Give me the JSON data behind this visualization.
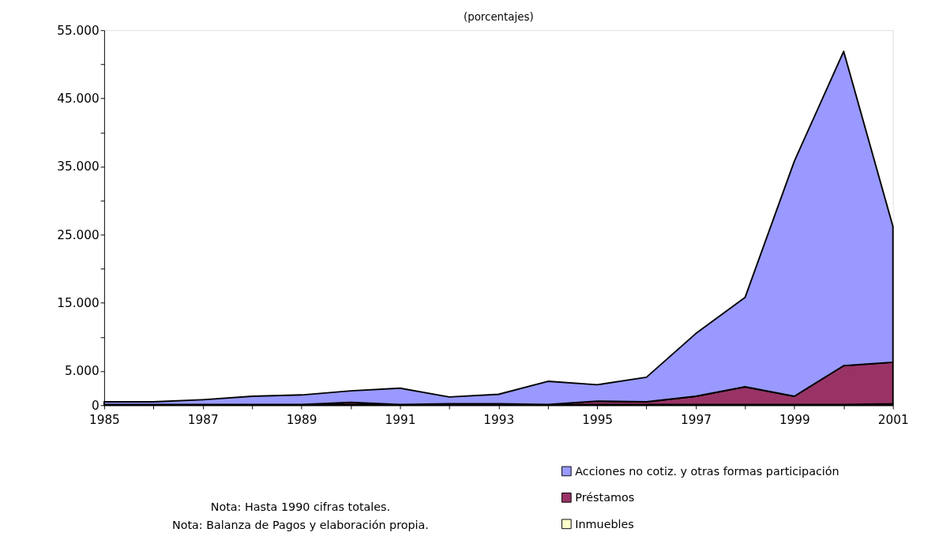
{
  "chart_data": {
    "type": "area",
    "title": "(porcentajes)",
    "stacked": true,
    "x": [
      1985,
      1986,
      1987,
      1988,
      1989,
      1990,
      1991,
      1992,
      1993,
      1994,
      1995,
      1996,
      1997,
      1998,
      1999,
      2000,
      2001
    ],
    "series": [
      {
        "name": "Inmuebles",
        "color": "#ffffcc",
        "values": [
          100,
          100,
          100,
          100,
          100,
          100,
          100,
          100,
          100,
          100,
          100,
          100,
          100,
          100,
          100,
          100,
          200
        ]
      },
      {
        "name": "Préstamos",
        "color": "#993366",
        "values": [
          0,
          0,
          0,
          0,
          0,
          300,
          0,
          100,
          100,
          0,
          500,
          400,
          1200,
          2600,
          1200,
          5700,
          6100
        ]
      },
      {
        "name": "Acciones no cotiz. y otras formas participación",
        "color": "#9999ff",
        "values": [
          400,
          400,
          700,
          1200,
          1400,
          1700,
          2400,
          1000,
          1400,
          3400,
          2400,
          3600,
          9200,
          13100,
          34500,
          46100,
          19900
        ]
      }
    ],
    "xlim": [
      1985,
      2001
    ],
    "xticks": [
      1985,
      {
        "value": 1986,
        "label": null
      },
      1987,
      {
        "value": 1988,
        "label": null
      },
      1989,
      {
        "value": 1990,
        "label": null
      },
      1991,
      {
        "value": 1992,
        "label": null
      },
      1993,
      {
        "value": 1994,
        "label": null
      },
      1995,
      {
        "value": 1996,
        "label": null
      },
      1997,
      {
        "value": 1998,
        "label": null
      },
      1999,
      {
        "value": 2000,
        "label": null
      },
      2001
    ],
    "ylim": [
      0,
      55000
    ],
    "yticks": [
      0,
      {
        "value": 5000,
        "label": "5.000"
      },
      {
        "value": 10000,
        "label": null
      },
      {
        "value": 15000,
        "label": "15.000"
      },
      {
        "value": 20000,
        "label": null
      },
      {
        "value": 25000,
        "label": "25.000"
      },
      {
        "value": 30000,
        "label": null
      },
      {
        "value": 35000,
        "label": "35.000"
      },
      {
        "value": 40000,
        "label": null
      },
      {
        "value": 45000,
        "label": "45.000"
      },
      {
        "value": 50000,
        "label": null
      },
      {
        "value": 55000,
        "label": "55.000"
      }
    ],
    "grid": false,
    "legend": "bottom right",
    "annotations": [
      "Nota: Hasta 1990 cifras totales.",
      "Nota: Balanza de Pagos y elaboración propia."
    ]
  }
}
